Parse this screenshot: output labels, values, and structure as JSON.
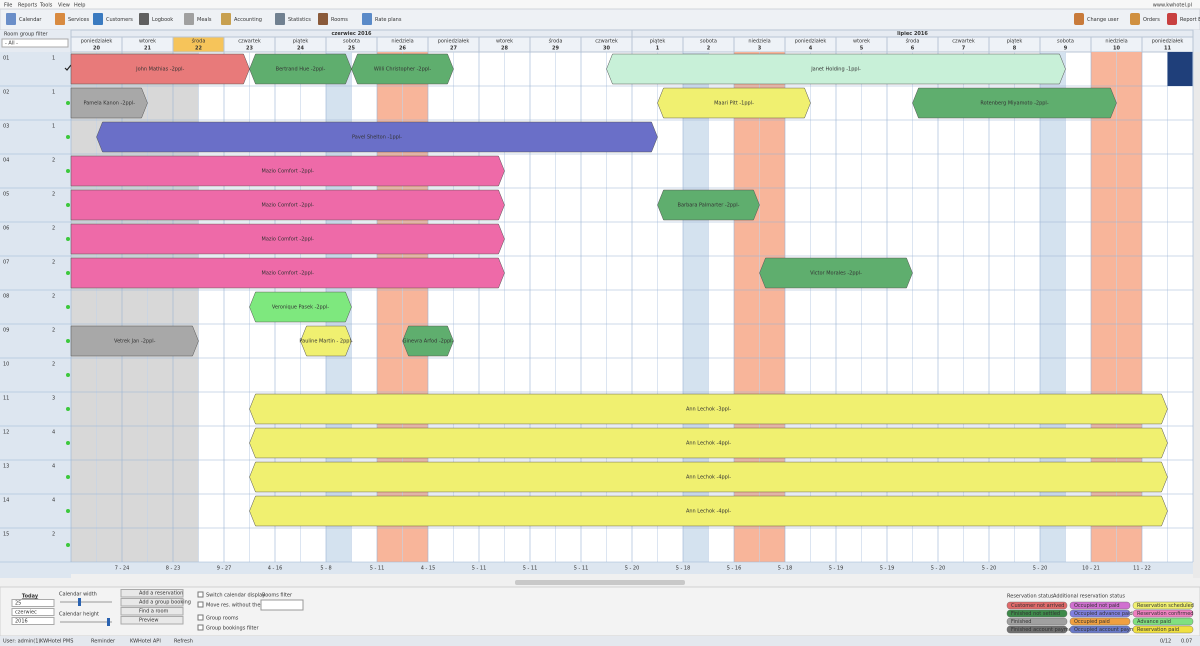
{
  "menu": [
    "File",
    "Reports",
    "Tools",
    "View",
    "Help"
  ],
  "site": "www.kwhotel.pl",
  "toolbar": [
    "Calendar",
    "Services",
    "Customers",
    "Logbook",
    "Meals",
    "Accounting",
    "Statistics",
    "Rooms",
    "Rate plans"
  ],
  "toolbar_right": [
    "Change user",
    "Orders",
    "Report Error"
  ],
  "calendar": {
    "filter_label": "Room group filter",
    "filter_value": "- All -",
    "months": [
      "czerwiec 2016",
      "lipiec 2016"
    ],
    "days": [
      {
        "name": "poniedziałek",
        "number": "20"
      },
      {
        "name": "wtorek",
        "number": "21"
      },
      {
        "name": "środa",
        "number": "22"
      },
      {
        "name": "czwartek",
        "number": "23"
      },
      {
        "name": "piątek",
        "number": "24"
      },
      {
        "name": "sobota",
        "number": "25"
      },
      {
        "name": "niedziela",
        "number": "26"
      },
      {
        "name": "poniedziałek",
        "number": "27"
      },
      {
        "name": "wtorek",
        "number": "28"
      },
      {
        "name": "środa",
        "number": "29"
      },
      {
        "name": "czwartek",
        "number": "30"
      },
      {
        "name": "piątek",
        "number": "1"
      },
      {
        "name": "sobota",
        "number": "2"
      },
      {
        "name": "niedziela",
        "number": "3"
      },
      {
        "name": "poniedziałek",
        "number": "4"
      },
      {
        "name": "wtorek",
        "number": "5"
      },
      {
        "name": "środa",
        "number": "6"
      },
      {
        "name": "czwartek",
        "number": "7"
      },
      {
        "name": "piątek",
        "number": "8"
      },
      {
        "name": "sobota",
        "number": "9"
      },
      {
        "name": "niedziela",
        "number": "10"
      },
      {
        "name": "poniedziałek",
        "number": "11"
      }
    ],
    "rooms": [
      {
        "number": "01",
        "beds": "1"
      },
      {
        "number": "02",
        "beds": "1"
      },
      {
        "number": "03",
        "beds": "1"
      },
      {
        "number": "04",
        "beds": "2"
      },
      {
        "number": "05",
        "beds": "2"
      },
      {
        "number": "06",
        "beds": "2"
      },
      {
        "number": "07",
        "beds": "2"
      },
      {
        "number": "08",
        "beds": "2"
      },
      {
        "number": "09",
        "beds": "2"
      },
      {
        "number": "10",
        "beds": "2"
      },
      {
        "number": "11",
        "beds": "3"
      },
      {
        "number": "12",
        "beds": "4"
      },
      {
        "number": "13",
        "beds": "4"
      },
      {
        "number": "14",
        "beds": "4"
      },
      {
        "number": "15",
        "beds": "2"
      }
    ],
    "bookings": [
      {
        "guest": "John Mathias -2ppl-",
        "color": "#e87a7a"
      },
      {
        "guest": "Bertrand Hue -2ppl-",
        "color": "#5fae6e"
      },
      {
        "guest": "Willi Christopher -2ppl-",
        "color": "#5fae6e"
      },
      {
        "guest": "Janet Holding -1ppl-",
        "color": "#c8f0d8"
      },
      {
        "guest": "Pamela Kanon -2ppl-",
        "color": "#a8a8a8"
      },
      {
        "guest": "Maari Pitt -1ppl-",
        "color": "#f0f070"
      },
      {
        "guest": "Rotenberg Miyamoto -2ppl-",
        "color": "#5fae6e"
      },
      {
        "guest": "Pavel Shelton -1ppl-",
        "color": "#6a6fc8"
      },
      {
        "guest": "Mazio Comfort -2ppl-",
        "color": "#ee6aa8"
      },
      {
        "guest": "Mazio Comfort -2ppl-",
        "color": "#ee6aa8"
      },
      {
        "guest": "Barbara Palmarter -2ppl-",
        "color": "#5fae6e"
      },
      {
        "guest": "Mazio Comfort -2ppl-",
        "color": "#ee6aa8"
      },
      {
        "guest": "Mazio Comfort -2ppl-",
        "color": "#ee6aa8"
      },
      {
        "guest": "Victor Morales -2ppl-",
        "color": "#5fae6e"
      },
      {
        "guest": "Veronique Pasek -2ppl-",
        "color": "#7ee87e"
      },
      {
        "guest": "Vetrek Jan -2ppl-",
        "color": "#a8a8a8"
      },
      {
        "guest": "Pauline Martin - 2ppl-",
        "color": "#f0f070"
      },
      {
        "guest": "Ginevra Arfod -2ppl-",
        "color": "#5fae6e"
      },
      {
        "guest": "Ann Lechok -3ppl-",
        "color": "#f0f070"
      },
      {
        "guest": "Ann Lechok -4ppl-",
        "color": "#f0f070"
      },
      {
        "guest": "Ann Lechok -4ppl-",
        "color": "#f0f070"
      },
      {
        "guest": "Ann Lechok -4ppl-",
        "color": "#f0f070"
      }
    ],
    "column_counts": [
      "7 - 24",
      "8 - 23",
      "9 - 27",
      "4 - 16",
      "5 - 8",
      "5 - 11",
      "4 - 15",
      "5 - 11",
      "5 - 11",
      "5 - 11",
      "5 - 20",
      "5 - 18",
      "5 - 16",
      "5 - 18",
      "5 - 19",
      "5 - 19",
      "5 - 20",
      "5 - 20",
      "5 - 20",
      "10 - 21",
      "11 - 22"
    ]
  },
  "controls": {
    "today": "Today",
    "day": "25",
    "month": "czerwiec",
    "year": "2016",
    "calendar_width": "Calendar width",
    "calendar_height": "Calendar height",
    "buttons": [
      "Add a reservation",
      "Add a group booking",
      "Find a room",
      "Preview"
    ],
    "checkboxes": [
      "Switch calendar display",
      "Move res. without the 'Shift' key",
      "Group rooms",
      "Group bookings filter"
    ],
    "rooms_filter": "Rooms filter"
  },
  "legend": {
    "title": "Reservation status",
    "additional_title": "Additional reservation status",
    "statuses": [
      {
        "label": "Customer not arrived",
        "color": "#e06a6a"
      },
      {
        "label": "Finished not settled",
        "color": "#3e8a4a"
      },
      {
        "label": "Finished",
        "color": "#a0a0a0"
      },
      {
        "label": "Finished account payment",
        "color": "#707070"
      },
      {
        "label": "Occupied not paid",
        "color": "#d070d0"
      },
      {
        "label": "Occupied advance paid",
        "color": "#8080e0"
      },
      {
        "label": "Occupied paid",
        "color": "#f0a040"
      },
      {
        "label": "Occupied account payment",
        "color": "#6a7ac8"
      },
      {
        "label": "Reservation scheduled",
        "color": "#f0f070"
      },
      {
        "label": "Reservation confirmed",
        "color": "#f080c0"
      },
      {
        "label": "Advance paid",
        "color": "#80e080"
      },
      {
        "label": "Reservation paid",
        "color": "#f0e040"
      }
    ]
  },
  "status_bar": [
    "User: admin(1)",
    "KWHotel PMS",
    "Reminder",
    "KWHotel API",
    "Refresh",
    "0/12",
    "0.07"
  ]
}
